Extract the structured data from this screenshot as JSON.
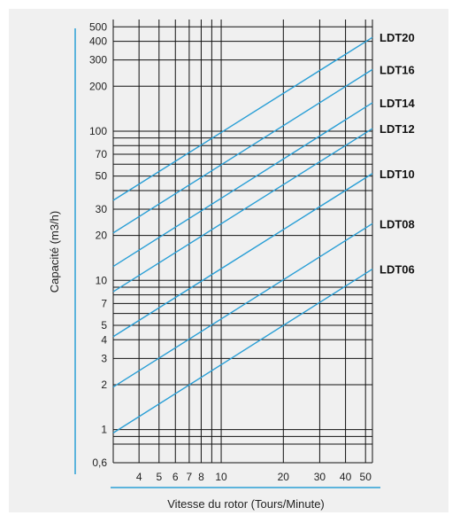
{
  "chart_data": {
    "type": "line",
    "title": "",
    "xlabel": "Vitesse du rotor (Tours/Minute)",
    "ylabel": "Capacité (m3/h)",
    "x_scale": "log",
    "y_scale": "log",
    "xlim": [
      3,
      54
    ],
    "ylim": [
      0.6,
      560
    ],
    "grid": true,
    "x_ticks": [
      4,
      5,
      6,
      7,
      8,
      10,
      20,
      30,
      40,
      50
    ],
    "x_tick_labels": [
      "4",
      "5",
      "6",
      "7",
      "8",
      "10",
      "20",
      "30",
      "40",
      "50"
    ],
    "y_ticks": [
      0.6,
      1,
      2,
      3,
      4,
      5,
      7,
      10,
      20,
      30,
      50,
      70,
      100,
      200,
      300,
      400,
      500
    ],
    "y_tick_labels": [
      "0,6",
      "1",
      "2",
      "3",
      "4",
      "5",
      "7",
      "10",
      "20",
      "30",
      "50",
      "70",
      "100",
      "200",
      "300",
      "400",
      "500"
    ],
    "extra_gridlines_x": [
      9
    ],
    "extra_gridlines_y": [
      0.8,
      0.9,
      6,
      8,
      9,
      40,
      60,
      80,
      90
    ],
    "line_color": "#2a9fd6",
    "axis_accent_color": "#2a9fd6",
    "series": [
      {
        "name": "LDT20",
        "x": [
          3,
          54
        ],
        "y": [
          34.4,
          425
        ]
      },
      {
        "name": "LDT16",
        "x": [
          3,
          54
        ],
        "y": [
          20.8,
          259
        ]
      },
      {
        "name": "LDT14",
        "x": [
          3,
          54
        ],
        "y": [
          12.4,
          155
        ]
      },
      {
        "name": "LDT12",
        "x": [
          3,
          54
        ],
        "y": [
          8.4,
          104
        ]
      },
      {
        "name": "LDT10",
        "x": [
          3,
          54
        ],
        "y": [
          4.2,
          52
        ]
      },
      {
        "name": "LDT08",
        "x": [
          3,
          54
        ],
        "y": [
          1.93,
          24
        ]
      },
      {
        "name": "LDT06",
        "x": [
          3,
          54
        ],
        "y": [
          0.95,
          11.9
        ]
      }
    ]
  }
}
